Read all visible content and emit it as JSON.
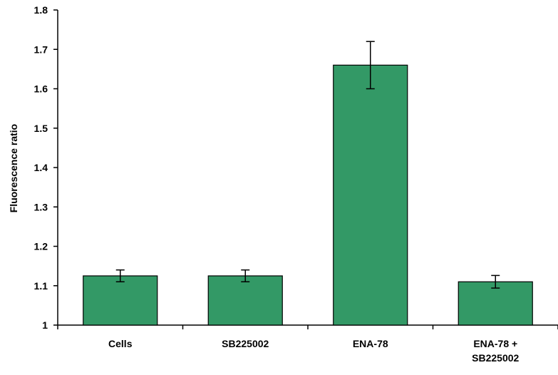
{
  "chart_data": {
    "type": "bar",
    "categories": [
      [
        "Cells"
      ],
      [
        "SB225002"
      ],
      [
        "ENA-78"
      ],
      [
        "ENA-78 +",
        "SB225002"
      ]
    ],
    "values": [
      1.125,
      1.125,
      1.66,
      1.11
    ],
    "errors": [
      0.015,
      0.015,
      0.06,
      0.016
    ],
    "ylabel": "Fluorescence ratio",
    "xlabel": "",
    "title": "",
    "ylim": [
      1,
      1.8
    ],
    "yticks": [
      "1",
      "1.1",
      "1.2",
      "1.3",
      "1.4",
      "1.5",
      "1.6",
      "1.7",
      "1.8"
    ],
    "bar_color": "#339966",
    "grid": false,
    "legend": "none"
  }
}
